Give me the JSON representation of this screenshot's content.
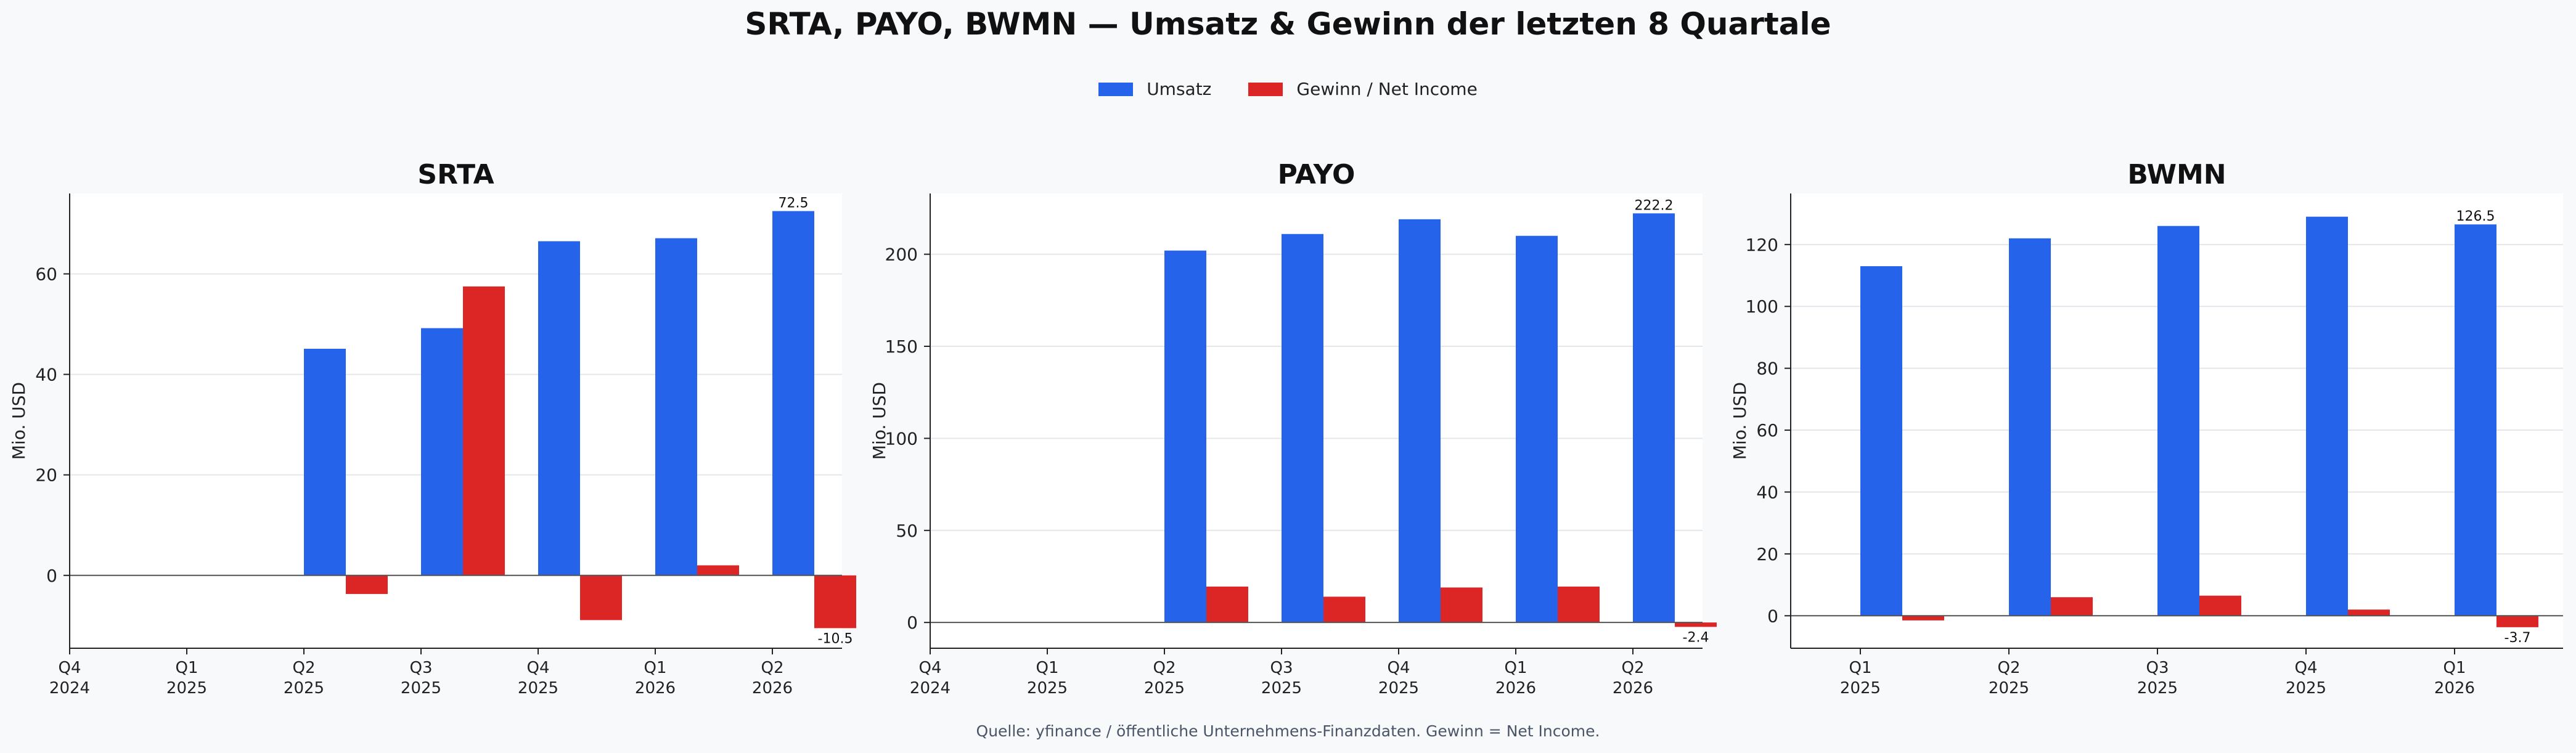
{
  "title": "SRTA, PAYO, BWMN — Umsatz & Gewinn der letzten 8 Quartale",
  "legend": [
    {
      "label": "Umsatz",
      "color": "#2563eb"
    },
    {
      "label": "Gewinn / Net Income",
      "color": "#dc2626"
    }
  ],
  "source": "Quelle: yfinance / öffentliche Unternehmens-Finanzdaten. Gewinn = Net Income.",
  "colors": {
    "revenue": "#2563eb",
    "income": "#dc2626"
  },
  "chart_data": [
    {
      "type": "bar",
      "title": "SRTA",
      "ylabel": "Mio. USD",
      "ylim": [
        -14.5,
        76
      ],
      "yticks": [
        0,
        20,
        40,
        60
      ],
      "categories": [
        "Q4\n2024",
        "Q1\n2025",
        "Q2\n2025",
        "Q3\n2025",
        "Q4\n2025",
        "Q1\n2026",
        "Q2\n2026"
      ],
      "series": [
        {
          "name": "Umsatz",
          "values": [
            null,
            null,
            45.1,
            49.2,
            66.5,
            67.1,
            72.5
          ]
        },
        {
          "name": "Gewinn / Net Income",
          "values": [
            null,
            null,
            -3.7,
            57.5,
            -8.9,
            2.0,
            -10.5
          ]
        }
      ],
      "annotations": [
        {
          "series": 0,
          "index": 6,
          "text": "72.5"
        },
        {
          "series": 1,
          "index": 6,
          "text": "-10.5"
        }
      ],
      "grid": true
    },
    {
      "type": "bar",
      "title": "PAYO",
      "ylabel": "Mio. USD",
      "ylim": [
        -14,
        233
      ],
      "yticks": [
        0,
        50,
        100,
        150,
        200
      ],
      "categories": [
        "Q4\n2024",
        "Q1\n2025",
        "Q2\n2025",
        "Q3\n2025",
        "Q4\n2025",
        "Q1\n2026",
        "Q2\n2026"
      ],
      "series": [
        {
          "name": "Umsatz",
          "values": [
            null,
            null,
            202.0,
            211.0,
            219.0,
            210.0,
            222.2
          ]
        },
        {
          "name": "Gewinn / Net Income",
          "values": [
            null,
            null,
            19.5,
            14.0,
            19.0,
            19.5,
            -2.4
          ]
        }
      ],
      "annotations": [
        {
          "series": 0,
          "index": 6,
          "text": "222.2"
        },
        {
          "series": 1,
          "index": 6,
          "text": "-2.4"
        }
      ],
      "grid": true
    },
    {
      "type": "bar",
      "title": "BWMN",
      "ylabel": "Mio. USD",
      "ylim": [
        -10.5,
        136.5
      ],
      "yticks": [
        0,
        20,
        40,
        60,
        80,
        100,
        120
      ],
      "categories": [
        "Q1\n2025",
        "Q2\n2025",
        "Q3\n2025",
        "Q4\n2025",
        "Q1\n2026"
      ],
      "series": [
        {
          "name": "Umsatz",
          "values": [
            113.0,
            122.0,
            126.0,
            129.0,
            126.5
          ]
        },
        {
          "name": "Gewinn / Net Income",
          "values": [
            -1.5,
            6.0,
            6.5,
            2.0,
            -3.7
          ]
        }
      ],
      "annotations": [
        {
          "series": 0,
          "index": 4,
          "text": "126.5"
        },
        {
          "series": 1,
          "index": 4,
          "text": "-3.7"
        }
      ],
      "grid": true
    }
  ]
}
